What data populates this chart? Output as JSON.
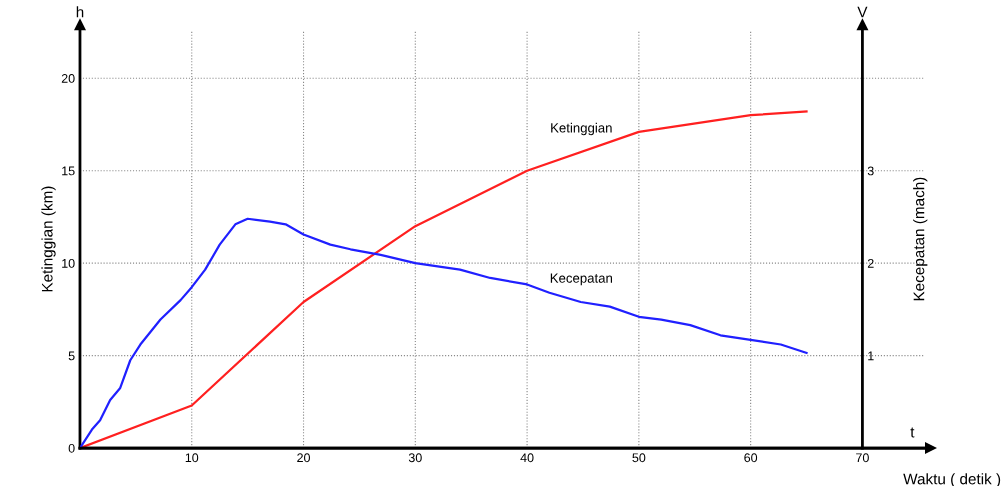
{
  "chart_data": {
    "type": "line",
    "xlabel": "Waktu ( detik )",
    "ylabel": "Ketinggian (km)",
    "y2label": "Kecepatan (mach)",
    "annotations": [
      "h",
      "V",
      "t"
    ],
    "xlim": [
      0,
      75.6
    ],
    "xticks": [
      10,
      20,
      30,
      40,
      50,
      60,
      70
    ],
    "ylim": [
      0,
      22.6
    ],
    "yticks": [
      0,
      5,
      10,
      15,
      20
    ],
    "y2lim": [
      0,
      4.52
    ],
    "y2ticks": [
      1,
      2,
      3
    ],
    "grid": true,
    "line_style": "solid",
    "marker": "none",
    "series": [
      {
        "name": "Ketinggian",
        "color": "#ff2020",
        "x": [
          0,
          10,
          20,
          30,
          40,
          50,
          60,
          65
        ],
        "values": [
          0,
          2.3,
          7.9,
          12,
          15,
          17.1,
          18,
          18.2
        ]
      },
      {
        "name": "Kecepatan",
        "color": "#2020ff",
        "axis": "y2",
        "x": [
          0,
          1.07,
          1.8,
          2.7,
          3.6,
          4.5,
          5.4,
          7.2,
          9.0,
          10,
          11.2,
          12.5,
          13.9,
          15,
          17,
          18.4,
          20,
          22.4,
          24.2,
          26.9,
          30,
          34,
          36.7,
          40,
          42,
          44.8,
          47.4,
          50,
          52,
          54.6,
          57.3,
          60,
          62.7,
          65
        ],
        "values": [
          0,
          0.2,
          0.3,
          0.52,
          0.65,
          0.95,
          1.12,
          1.39,
          1.6,
          1.74,
          1.93,
          2.2,
          2.42,
          2.48,
          2.45,
          2.42,
          2.31,
          2.2,
          2.15,
          2.09,
          2.0,
          1.93,
          1.84,
          1.77,
          1.68,
          1.58,
          1.53,
          1.42,
          1.39,
          1.33,
          1.22,
          1.17,
          1.12,
          1.03
        ]
      }
    ]
  }
}
